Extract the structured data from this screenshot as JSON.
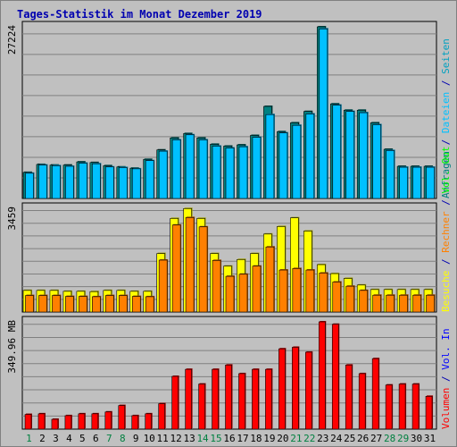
{
  "title": "Tages-Statistik im Monat Dezember 2019",
  "colors": {
    "anfragen": "#008080",
    "dateien": "#00c0ff",
    "seiten": "#00a0c0",
    "besuche": "#ffff00",
    "rechner": "#ff8000",
    "vol_out": "#00ff00",
    "vol_in": "#0000ff",
    "volumen": "#ff0000",
    "title": "#0000b0",
    "plot_bg": "#c0c0c0",
    "day_weekday": "#000000",
    "day_weekend": "#008040"
  },
  "chart_data": [
    {
      "type": "bar",
      "panel": "top",
      "ymax_label": "27224",
      "ylim": [
        0,
        27224
      ],
      "categories": [
        "1",
        "2",
        "3",
        "4",
        "5",
        "6",
        "7",
        "8",
        "9",
        "10",
        "11",
        "12",
        "13",
        "14",
        "15",
        "16",
        "17",
        "18",
        "19",
        "20",
        "21",
        "22",
        "23",
        "24",
        "25",
        "26",
        "27",
        "28",
        "29",
        "30",
        "31"
      ],
      "right_legend": [
        {
          "text": "Anfragen",
          "color_key": "anfragen"
        },
        {
          "text": " / ",
          "color_key": "title"
        },
        {
          "text": "Dateien",
          "color_key": "dateien"
        },
        {
          "text": " / ",
          "color_key": "title"
        },
        {
          "text": "Seiten",
          "color_key": "seiten"
        }
      ],
      "series": [
        {
          "name": "Anfragen",
          "color_key": "anfragen",
          "values": [
            4140,
            5400,
            5300,
            5300,
            5800,
            5700,
            5200,
            5000,
            4800,
            6200,
            7700,
            9600,
            10300,
            9600,
            8600,
            8300,
            8500,
            10000,
            14600,
            10600,
            12000,
            13800,
            27224,
            15000,
            14000,
            14000,
            12000,
            7800,
            5100,
            5100,
            5100
          ]
        },
        {
          "name": "Dateien",
          "color_key": "dateien",
          "values": [
            4000,
            5300,
            5200,
            5100,
            5600,
            5500,
            5000,
            4900,
            4700,
            6000,
            7500,
            9300,
            10100,
            9300,
            8300,
            8000,
            8200,
            9700,
            13300,
            10400,
            11600,
            13400,
            26900,
            14800,
            13800,
            13600,
            11700,
            7600,
            4950,
            4950,
            4950
          ]
        }
      ]
    },
    {
      "type": "bar",
      "panel": "middle",
      "ymax_label": "3459",
      "ylim": [
        0,
        3459
      ],
      "categories": [
        "1",
        "2",
        "3",
        "4",
        "5",
        "6",
        "7",
        "8",
        "9",
        "10",
        "11",
        "12",
        "13",
        "14",
        "15",
        "16",
        "17",
        "18",
        "19",
        "20",
        "21",
        "22",
        "23",
        "24",
        "25",
        "26",
        "27",
        "28",
        "29",
        "30",
        "31"
      ],
      "right_legend": [
        {
          "text": "Besuche",
          "color_key": "besuche"
        },
        {
          "text": " / ",
          "color_key": "title"
        },
        {
          "text": "Rechner",
          "color_key": "rechner"
        },
        {
          "text": " / ",
          "color_key": "title"
        },
        {
          "text": "Vol. Out",
          "color_key": "vol_out"
        }
      ],
      "series": [
        {
          "name": "Besuche",
          "color_key": "besuche",
          "values": [
            720,
            720,
            720,
            690,
            690,
            680,
            720,
            720,
            690,
            690,
            1950,
            3120,
            3450,
            3120,
            1950,
            1530,
            1750,
            1950,
            2600,
            2850,
            3140,
            2700,
            1580,
            1280,
            1120,
            900,
            750,
            750,
            750,
            750,
            750
          ]
        },
        {
          "name": "Rechner",
          "color_key": "rechner",
          "values": [
            550,
            550,
            550,
            520,
            520,
            510,
            550,
            550,
            520,
            510,
            1730,
            2900,
            3150,
            2840,
            1720,
            1190,
            1260,
            1530,
            2170,
            1400,
            1450,
            1400,
            1300,
            1000,
            860,
            720,
            560,
            560,
            560,
            560,
            560
          ]
        }
      ]
    },
    {
      "type": "bar",
      "panel": "bottom",
      "ymax_label": "349.96 MB",
      "ylim": [
        0,
        349.96
      ],
      "categories": [
        "1",
        "2",
        "3",
        "4",
        "5",
        "6",
        "7",
        "8",
        "9",
        "10",
        "11",
        "12",
        "13",
        "14",
        "15",
        "16",
        "17",
        "18",
        "19",
        "20",
        "21",
        "22",
        "23",
        "24",
        "25",
        "26",
        "27",
        "28",
        "29",
        "30",
        "31"
      ],
      "right_legend": [
        {
          "text": "Volumen",
          "color_key": "volumen"
        },
        {
          "text": " / ",
          "color_key": "title"
        },
        {
          "text": "Vol. In",
          "color_key": "vol_in"
        }
      ],
      "series": [
        {
          "name": "Volumen",
          "color_key": "volumen",
          "values": [
            48,
            50,
            32,
            44,
            50,
            50,
            56,
            77,
            44,
            50,
            83,
            172,
            195,
            147,
            195,
            209,
            181,
            195,
            195,
            262,
            267,
            251,
            349.96,
            342,
            209,
            181,
            230,
            144,
            147,
            147,
            107
          ]
        }
      ]
    }
  ],
  "weekend_days": [
    "1",
    "7",
    "8",
    "14",
    "15",
    "21",
    "22",
    "28",
    "29"
  ]
}
